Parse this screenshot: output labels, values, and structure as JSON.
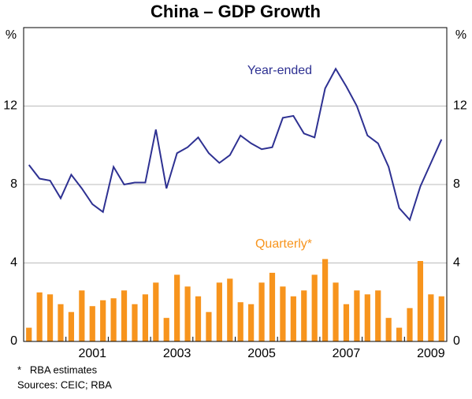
{
  "chart_data": {
    "type": "bar-line",
    "title": "China – GDP Growth",
    "y_unit": "%",
    "categories": [
      null,
      null,
      null,
      null,
      null,
      null,
      "2001",
      null,
      null,
      null,
      null,
      null,
      null,
      null,
      "2003",
      null,
      null,
      null,
      null,
      null,
      null,
      null,
      "2005",
      null,
      null,
      null,
      null,
      null,
      null,
      null,
      "2007",
      null,
      null,
      null,
      null,
      null,
      null,
      null,
      "2009",
      null
    ],
    "series": [
      {
        "name": "Quarterly*",
        "type": "bar",
        "color": "#f7941d",
        "values": [
          0.7,
          2.5,
          2.4,
          1.9,
          1.5,
          2.6,
          1.8,
          2.1,
          2.2,
          2.6,
          1.9,
          2.4,
          3.0,
          1.2,
          3.4,
          2.8,
          2.3,
          1.5,
          3.0,
          3.2,
          2.0,
          1.9,
          3.0,
          3.5,
          2.8,
          2.3,
          2.6,
          3.4,
          4.2,
          3.0,
          1.9,
          2.6,
          2.4,
          2.6,
          1.2,
          0.7,
          1.7,
          4.1,
          2.4,
          2.3
        ]
      },
      {
        "name": "Year-ended",
        "type": "line",
        "color": "#2e3192",
        "values": [
          9.0,
          8.3,
          8.2,
          7.3,
          8.5,
          7.8,
          7.0,
          6.6,
          8.9,
          8.0,
          8.1,
          8.1,
          10.8,
          7.8,
          9.6,
          9.9,
          10.4,
          9.6,
          9.1,
          9.5,
          10.5,
          10.1,
          9.8,
          9.9,
          11.4,
          11.5,
          10.6,
          10.4,
          12.9,
          13.9,
          13.0,
          12.0,
          10.5,
          10.1,
          8.9,
          6.8,
          6.2,
          7.9,
          9.1,
          10.3
        ]
      }
    ],
    "ylim": [
      0,
      16
    ],
    "yticks": [
      0,
      4,
      8,
      12
    ],
    "grid": true,
    "notes": [
      "*   RBA estimates",
      "Sources: CEIC; RBA"
    ]
  }
}
